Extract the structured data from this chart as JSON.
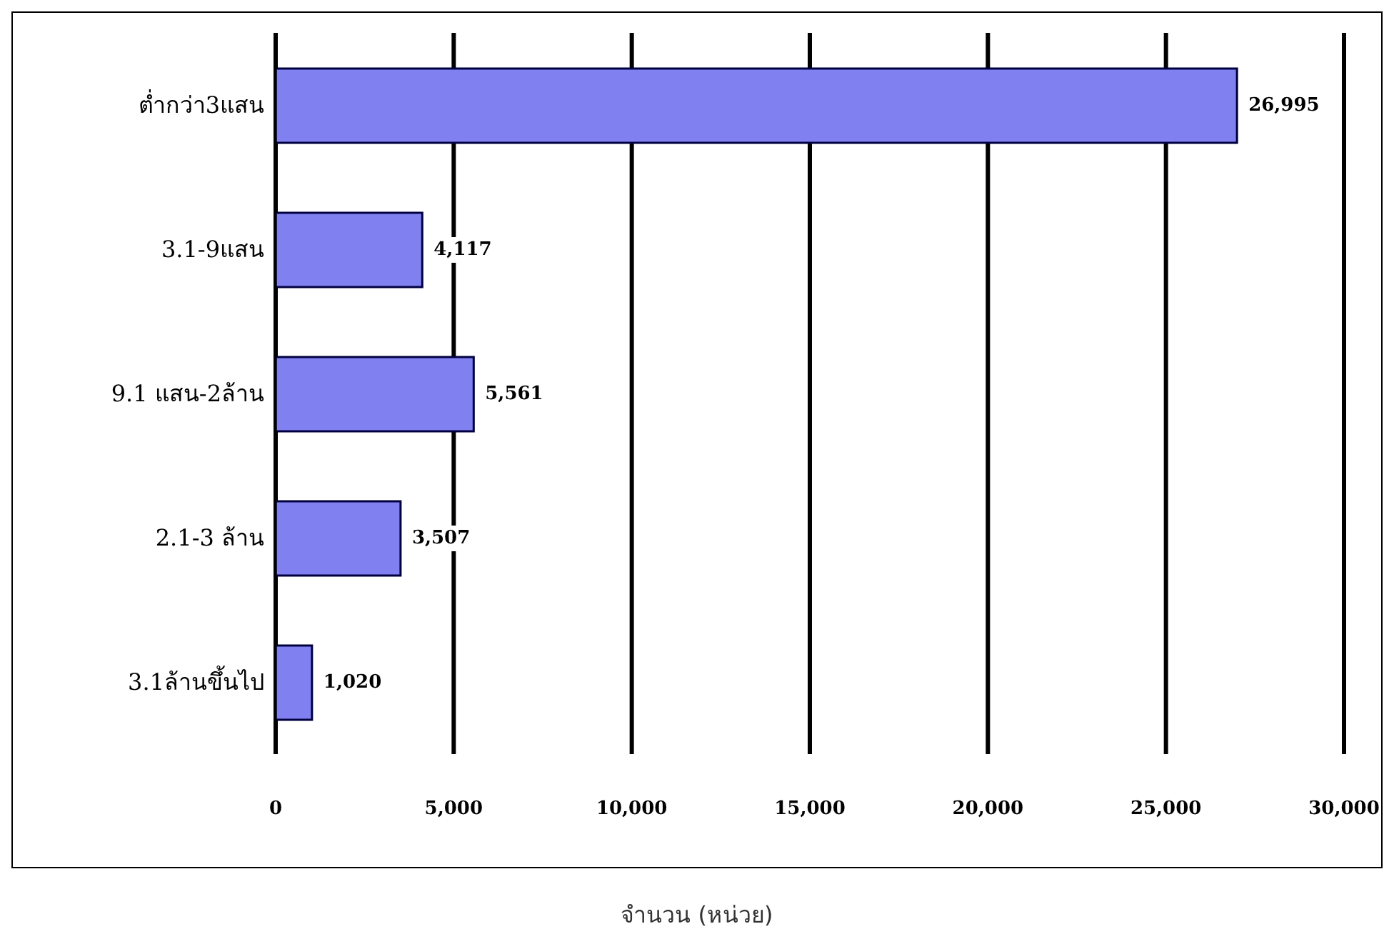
{
  "chart_data": {
    "type": "bar",
    "orientation": "horizontal",
    "xlabel": "จำนวน (หน่วย)",
    "categories": [
      "ต่ำกว่า3แสน",
      "3.1-9แสน",
      "9.1 แสน-2ล้าน",
      "2.1-3 ล้าน",
      "3.1ล้านขึ้นไป"
    ],
    "values": [
      26995,
      4117,
      5561,
      3507,
      1020
    ],
    "value_labels": [
      "26,995",
      "4,117",
      "5,561",
      "3,507",
      "1,020"
    ],
    "color": "#8080f0",
    "xlim": [
      0,
      30000
    ],
    "xticks": [
      0,
      {
        "value": 5000,
        "label": "5,000"
      },
      {
        "value": 10000,
        "label": "10,000"
      },
      {
        "value": 15000,
        "label": "15,000"
      },
      {
        "value": 20000,
        "label": "20,000"
      },
      {
        "value": 25000,
        "label": "25,000"
      },
      {
        "value": 30000,
        "label": "30,000"
      }
    ],
    "grid": "x",
    "legend": false
  }
}
